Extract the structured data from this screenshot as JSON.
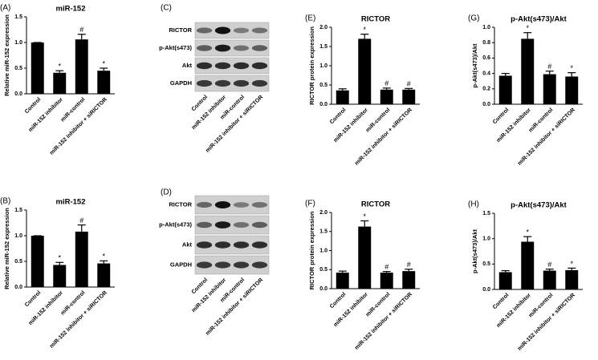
{
  "chart_data": [
    {
      "type": "bar",
      "panel": "(A)",
      "title": "miR-152",
      "y_label": "Relative miR-152 expression",
      "categories": [
        "Control",
        "miR-152 inhibitor",
        "miR-control",
        "miR-152 inhibitor + siRICTOR"
      ],
      "values": [
        1.0,
        0.41,
        1.06,
        0.45
      ],
      "errors": [
        0,
        0.04,
        0.1,
        0.05
      ],
      "annotations": [
        null,
        "*",
        "#",
        "*"
      ],
      "color": "#000000",
      "ylim": [
        0,
        1.5
      ],
      "yticks": [
        {
          "value": 0,
          "label": "0.0"
        },
        0.5,
        {
          "value": 1,
          "label": "1.0"
        },
        1.5
      ]
    },
    {
      "type": "bar",
      "panel": "(B)",
      "title": "miR-152",
      "y_label": "Relative miR-152 expression",
      "categories": [
        "Control",
        "miR-152 inhibitor",
        "miR-control",
        "miR-152 inhibitor + siRICTOR"
      ],
      "values": [
        1.0,
        0.43,
        1.08,
        0.46
      ],
      "errors": [
        0,
        0.05,
        0.13,
        0.05
      ],
      "annotations": [
        null,
        "*",
        "#",
        "*"
      ],
      "color": "#000000",
      "ylim": [
        0,
        1.5
      ],
      "yticks": [
        {
          "value": 0,
          "label": "0.0"
        },
        0.5,
        {
          "value": 1,
          "label": "1.0"
        },
        1.5
      ]
    },
    {
      "type": "bar",
      "panel": "(E)",
      "title": "RICTOR",
      "y_label": "RICTOR protein expression",
      "categories": [
        "Control",
        "miR-152 inhibitor",
        "miR-control",
        "miR-152 inhibitor + siRICTOR"
      ],
      "values": [
        0.36,
        1.7,
        0.38,
        0.38
      ],
      "errors": [
        0.04,
        0.12,
        0.04,
        0.03
      ],
      "annotations": [
        null,
        "*",
        "#",
        "#"
      ],
      "color": "#000000",
      "ylim": [
        0,
        2
      ],
      "yticks": [
        {
          "value": 0,
          "label": "0.0"
        },
        0.5,
        {
          "value": 1,
          "label": "1.0"
        },
        1.5,
        {
          "value": 2,
          "label": "2.0"
        }
      ]
    },
    {
      "type": "bar",
      "panel": "(F)",
      "title": "RICTOR",
      "y_label": "RICTOR protein expression",
      "categories": [
        "Control",
        "miR-152 inhibitor",
        "miR-control",
        "miR-152 inhibitor + siRICTOR"
      ],
      "values": [
        0.42,
        1.63,
        0.42,
        0.46
      ],
      "errors": [
        0.04,
        0.15,
        0.03,
        0.05
      ],
      "annotations": [
        null,
        "*",
        "#",
        "#"
      ],
      "color": "#000000",
      "ylim": [
        0,
        2
      ],
      "yticks": [
        {
          "value": 0,
          "label": "0.0"
        },
        0.5,
        {
          "value": 1,
          "label": "1.0"
        },
        1.5,
        {
          "value": 2,
          "label": "2.0"
        }
      ]
    },
    {
      "type": "bar",
      "panel": "(G)",
      "title": "p-Akt(s473)/Akt",
      "y_label": "p-Akt(s473)/Akt",
      "categories": [
        "Control",
        "miR-152 inhibitor",
        "miR-control",
        "miR-152 inhibitor + siRICTOR"
      ],
      "values": [
        0.37,
        0.85,
        0.39,
        0.36
      ],
      "errors": [
        0.03,
        0.08,
        0.04,
        0.05
      ],
      "annotations": [
        null,
        "*",
        "#",
        "*"
      ],
      "color": "#000000",
      "ylim": [
        0,
        1
      ],
      "yticks": [
        {
          "value": 0,
          "label": "0.0"
        },
        0.2,
        0.4,
        0.6,
        0.8,
        {
          "value": 1,
          "label": "1.0"
        }
      ]
    },
    {
      "type": "bar",
      "panel": "(H)",
      "title": "p-Akt(s473)/Akt",
      "y_label": "p-Akt(s473)/Akt",
      "categories": [
        "Control",
        "miR-152 inhibitor",
        "miR-control",
        "miR-152 inhibitor + siRICTOR"
      ],
      "values": [
        0.34,
        0.94,
        0.37,
        0.38
      ],
      "errors": [
        0.03,
        0.1,
        0.03,
        0.04
      ],
      "annotations": [
        null,
        "*",
        "#",
        "*"
      ],
      "color": "#000000",
      "ylim": [
        0,
        1.5
      ],
      "yticks": [
        {
          "value": 0,
          "label": "0.0"
        },
        0.5,
        {
          "value": 1,
          "label": "1.0"
        },
        1.5
      ]
    }
  ],
  "blots": [
    {
      "panel": "(C)",
      "rows": [
        "RICTOR",
        "p-Akt(s473)",
        "Akt",
        "GAPDH"
      ],
      "lanes": [
        "Control",
        "miR-152 inhibitor",
        "miR-control",
        "miR-152 inhibitor + siRICTOR"
      ]
    },
    {
      "panel": "(D)",
      "rows": [
        "RICTOR",
        "p-Akt(s473)",
        "Akt",
        "GAPDH"
      ],
      "lanes": [
        "Control",
        "miR-152 inhibitor",
        "miR-control",
        "miR-152 inhibitor + siRICTOR"
      ]
    }
  ]
}
